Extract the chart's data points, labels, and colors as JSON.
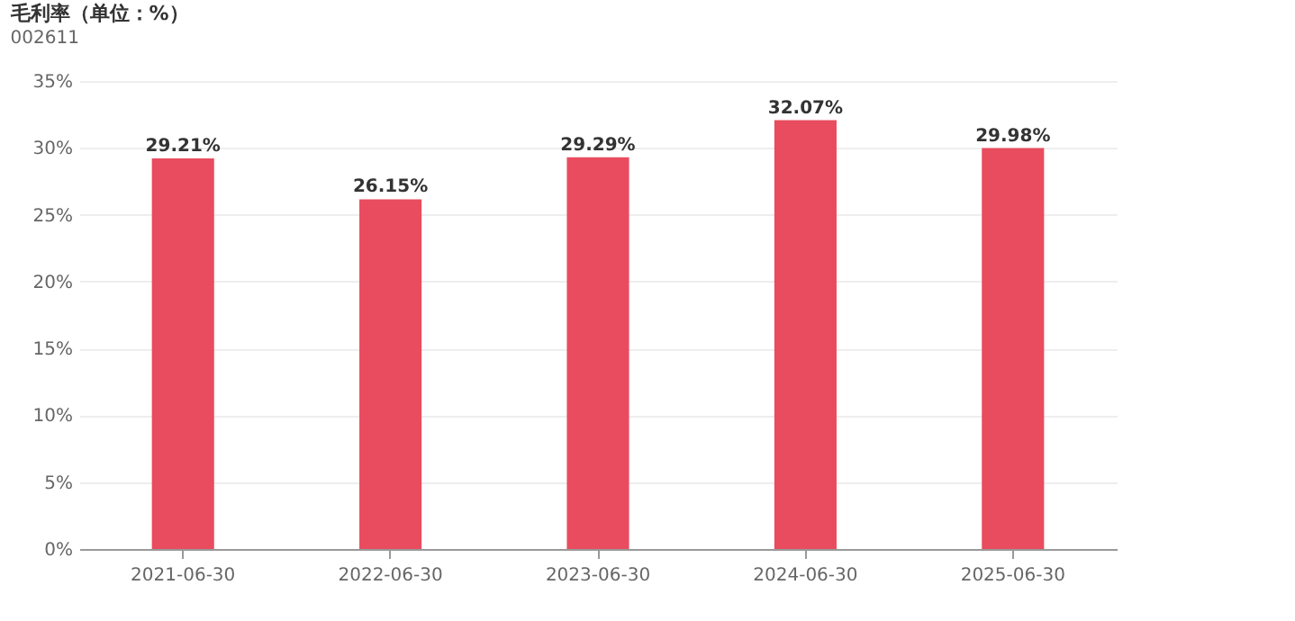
{
  "chart_data": {
    "type": "bar",
    "title": "毛利率（单位：%）",
    "subtitle": "002611",
    "categories": [
      "2021-06-30",
      "2022-06-30",
      "2023-06-30",
      "2024-06-30",
      "2025-06-30"
    ],
    "values": [
      29.21,
      26.15,
      29.29,
      32.07,
      29.98
    ],
    "value_labels": [
      "29.21%",
      "26.15%",
      "29.29%",
      "32.07%",
      "29.98%"
    ],
    "color": "#e84c5e",
    "ylim": [
      0,
      35
    ],
    "yticks": [
      {
        "value": 0,
        "label": "0%"
      },
      {
        "value": 5,
        "label": "5%"
      },
      {
        "value": 10,
        "label": "10%"
      },
      {
        "value": 15,
        "label": "15%"
      },
      {
        "value": 20,
        "label": "20%"
      },
      {
        "value": 25,
        "label": "25%"
      },
      {
        "value": 30,
        "label": "30%"
      },
      {
        "value": 35,
        "label": "35%"
      }
    ],
    "grid": "y"
  }
}
